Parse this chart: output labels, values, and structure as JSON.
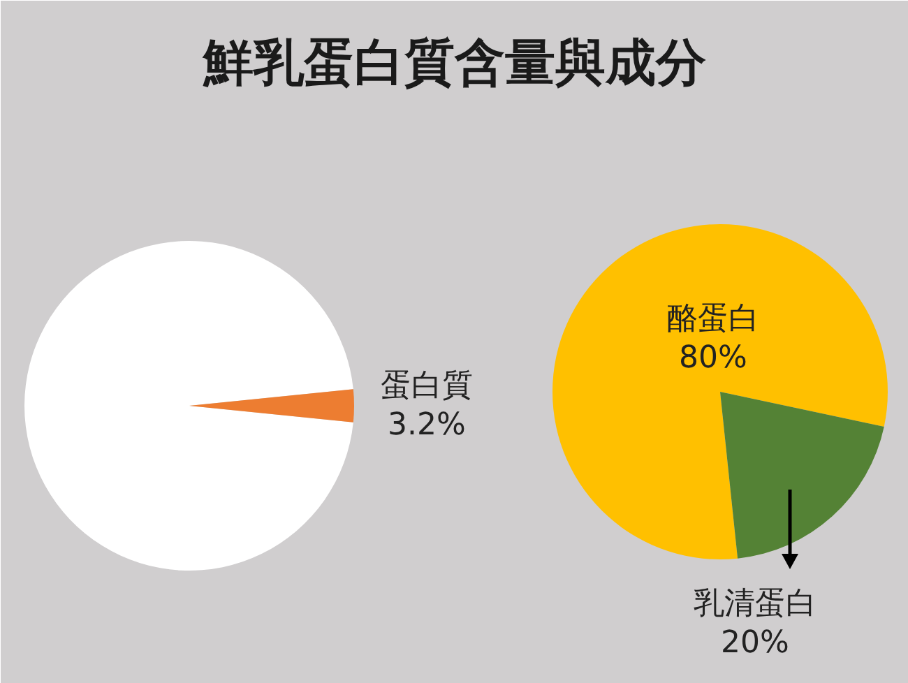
{
  "chart_data": [
    {
      "type": "pie",
      "title": "鮮乳蛋白質含量與成分",
      "categories": [
        null,
        "蛋白質"
      ],
      "values": [
        96.8,
        3.2
      ],
      "colors": [
        "#ffffff",
        "#ed7d31"
      ],
      "value_labels": [
        null,
        "3.2%"
      ]
    },
    {
      "type": "pie",
      "categories": [
        "酪蛋白",
        "乳清蛋白"
      ],
      "values": [
        80,
        20
      ],
      "colors": [
        "#ffc000",
        "#548235"
      ],
      "value_labels": [
        "80%",
        "20%"
      ]
    }
  ]
}
